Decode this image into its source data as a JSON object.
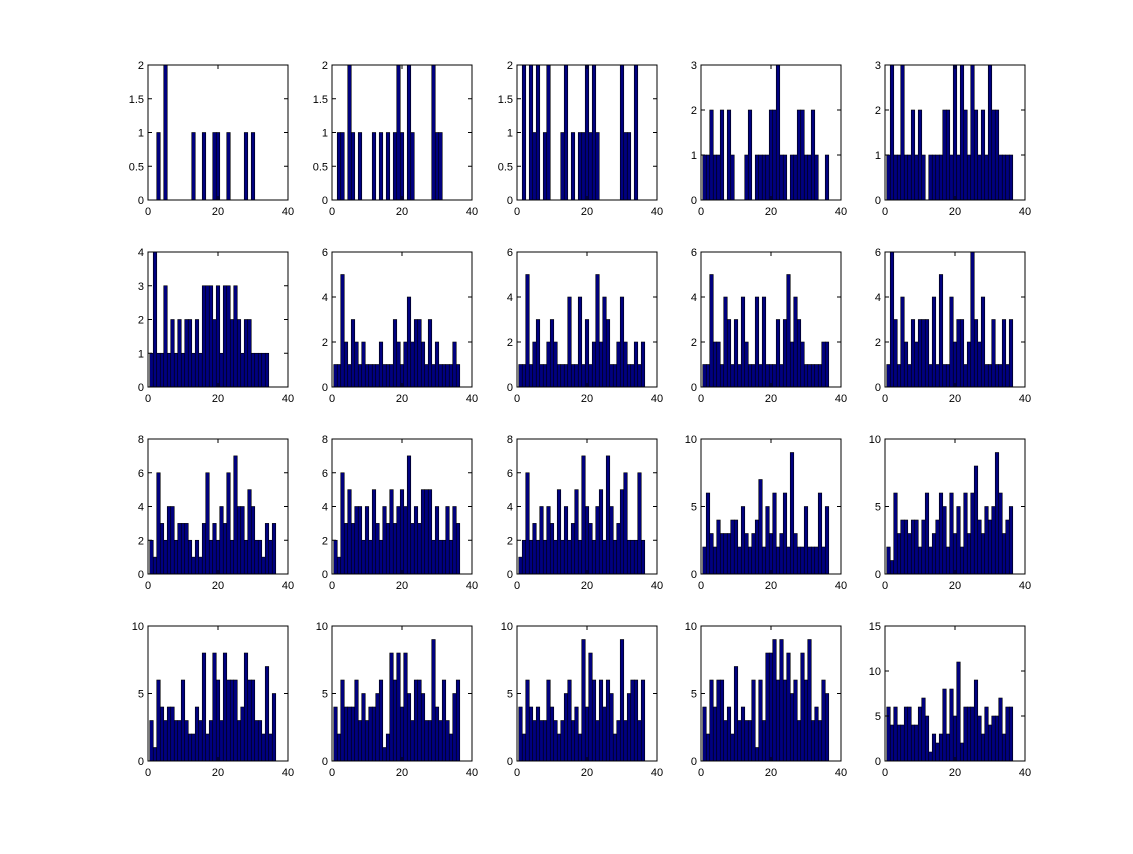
{
  "colors": {
    "bar_fill": "#000080",
    "bar_edge": "#000000",
    "axes": "#000000",
    "background": "#ffffff"
  },
  "chart_data": [
    {
      "type": "bar",
      "xlim": [
        0,
        40
      ],
      "ylim": [
        0,
        2
      ],
      "xticks": [
        "0",
        "20",
        "40"
      ],
      "yticks": [
        "0",
        "0.5",
        "1",
        "1.5",
        "2"
      ],
      "x_start": 1,
      "values": [
        0,
        0,
        1,
        0,
        2,
        0,
        0,
        0,
        0,
        0,
        0,
        0,
        1,
        0,
        0,
        1,
        0,
        0,
        1,
        1,
        0,
        0,
        1,
        0,
        0,
        0,
        0,
        1,
        0,
        1,
        0,
        0,
        0,
        0,
        0,
        0
      ]
    },
    {
      "type": "bar",
      "xlim": [
        0,
        40
      ],
      "ylim": [
        0,
        2
      ],
      "xticks": [
        "0",
        "20",
        "40"
      ],
      "yticks": [
        "0",
        "0.5",
        "1",
        "1.5",
        "2"
      ],
      "x_start": 1,
      "values": [
        0,
        1,
        1,
        0,
        2,
        1,
        0,
        1,
        0,
        0,
        0,
        1,
        0,
        1,
        0,
        1,
        0,
        1,
        2,
        1,
        0,
        2,
        1,
        0,
        0,
        0,
        0,
        0,
        2,
        1,
        1,
        0,
        0,
        0,
        0,
        0
      ]
    },
    {
      "type": "bar",
      "xlim": [
        0,
        40
      ],
      "ylim": [
        0,
        2
      ],
      "xticks": [
        "0",
        "20",
        "40"
      ],
      "yticks": [
        "0",
        "0.5",
        "1",
        "1.5",
        "2"
      ],
      "x_start": 1,
      "values": [
        0,
        2,
        0,
        2,
        1,
        2,
        0,
        1,
        2,
        0,
        0,
        0,
        1,
        2,
        0,
        1,
        0,
        1,
        1,
        2,
        1,
        2,
        1,
        0,
        0,
        0,
        0,
        0,
        0,
        2,
        1,
        1,
        0,
        2,
        0,
        0
      ]
    },
    {
      "type": "bar",
      "xlim": [
        0,
        40
      ],
      "ylim": [
        0,
        3
      ],
      "xticks": [
        "0",
        "20",
        "40"
      ],
      "yticks": [
        "0",
        "1",
        "2",
        "3"
      ],
      "x_start": 1,
      "values": [
        1,
        1,
        2,
        1,
        1,
        2,
        0,
        2,
        1,
        0,
        0,
        0,
        1,
        2,
        0,
        1,
        1,
        1,
        1,
        2,
        2,
        3,
        1,
        1,
        0,
        1,
        1,
        2,
        2,
        1,
        1,
        2,
        1,
        0,
        0,
        1
      ]
    },
    {
      "type": "bar",
      "xlim": [
        0,
        40
      ],
      "ylim": [
        0,
        3
      ],
      "xticks": [
        "0",
        "20",
        "40"
      ],
      "yticks": [
        "0",
        "1",
        "2",
        "3"
      ],
      "x_start": 1,
      "values": [
        1,
        3,
        1,
        1,
        3,
        1,
        1,
        2,
        1,
        2,
        1,
        0,
        1,
        1,
        1,
        1,
        2,
        2,
        1,
        3,
        1,
        3,
        2,
        1,
        3,
        2,
        1,
        2,
        1,
        3,
        2,
        2,
        1,
        1,
        1,
        1
      ]
    },
    {
      "type": "bar",
      "xlim": [
        0,
        40
      ],
      "ylim": [
        0,
        4
      ],
      "xticks": [
        "0",
        "20",
        "40"
      ],
      "yticks": [
        "0",
        "1",
        "2",
        "3",
        "4"
      ],
      "x_start": 1,
      "values": [
        1,
        4,
        1,
        1,
        3,
        1,
        2,
        1,
        2,
        1,
        2,
        2,
        1,
        2,
        1,
        3,
        3,
        3,
        2,
        3,
        1,
        3,
        3,
        2,
        3,
        2,
        1,
        2,
        2,
        1,
        1,
        1,
        1,
        1,
        0,
        0
      ]
    },
    {
      "type": "bar",
      "xlim": [
        0,
        40
      ],
      "ylim": [
        0,
        6
      ],
      "xticks": [
        "0",
        "20",
        "40"
      ],
      "yticks": [
        "0",
        "2",
        "4",
        "6"
      ],
      "x_start": 1,
      "values": [
        1,
        1,
        5,
        2,
        1,
        3,
        2,
        1,
        2,
        1,
        1,
        1,
        1,
        2,
        1,
        1,
        1,
        3,
        2,
        1,
        2,
        4,
        2,
        3,
        3,
        2,
        1,
        3,
        1,
        2,
        1,
        1,
        1,
        1,
        2,
        1
      ]
    },
    {
      "type": "bar",
      "xlim": [
        0,
        40
      ],
      "ylim": [
        0,
        6
      ],
      "xticks": [
        "0",
        "20",
        "40"
      ],
      "yticks": [
        "0",
        "2",
        "4",
        "6"
      ],
      "x_start": 1,
      "values": [
        1,
        1,
        5,
        1,
        2,
        3,
        1,
        1,
        2,
        3,
        2,
        1,
        1,
        1,
        4,
        1,
        1,
        4,
        1,
        3,
        1,
        2,
        5,
        2,
        4,
        3,
        1,
        1,
        2,
        4,
        2,
        1,
        1,
        2,
        1,
        2
      ]
    },
    {
      "type": "bar",
      "xlim": [
        0,
        40
      ],
      "ylim": [
        0,
        6
      ],
      "xticks": [
        "0",
        "20",
        "40"
      ],
      "yticks": [
        "0",
        "2",
        "4",
        "6"
      ],
      "x_start": 1,
      "values": [
        1,
        1,
        5,
        2,
        2,
        1,
        4,
        3,
        1,
        3,
        1,
        4,
        2,
        1,
        1,
        4,
        1,
        4,
        1,
        1,
        1,
        3,
        1,
        3,
        5,
        2,
        4,
        3,
        2,
        1,
        1,
        1,
        1,
        1,
        2,
        2
      ]
    },
    {
      "type": "bar",
      "xlim": [
        0,
        40
      ],
      "ylim": [
        0,
        6
      ],
      "xticks": [
        "0",
        "20",
        "40"
      ],
      "yticks": [
        "0",
        "2",
        "4",
        "6"
      ],
      "x_start": 1,
      "values": [
        1,
        6,
        3,
        1,
        4,
        2,
        1,
        3,
        2,
        3,
        3,
        3,
        1,
        4,
        1,
        5,
        1,
        1,
        4,
        2,
        3,
        3,
        1,
        2,
        6,
        3,
        2,
        4,
        1,
        1,
        3,
        1,
        1,
        3,
        1,
        3
      ]
    },
    {
      "type": "bar",
      "xlim": [
        0,
        40
      ],
      "ylim": [
        0,
        8
      ],
      "xticks": [
        "0",
        "20",
        "40"
      ],
      "yticks": [
        "0",
        "2",
        "4",
        "6",
        "8"
      ],
      "x_start": 1,
      "values": [
        2,
        1,
        6,
        3,
        2,
        4,
        4,
        2,
        3,
        3,
        3,
        2,
        1,
        2,
        1,
        3,
        6,
        2,
        3,
        2,
        4,
        3,
        6,
        2,
        7,
        4,
        4,
        2,
        5,
        4,
        2,
        2,
        1,
        3,
        2,
        3
      ]
    },
    {
      "type": "bar",
      "xlim": [
        0,
        40
      ],
      "ylim": [
        0,
        8
      ],
      "xticks": [
        "0",
        "20",
        "40"
      ],
      "yticks": [
        "0",
        "2",
        "4",
        "6",
        "8"
      ],
      "x_start": 1,
      "values": [
        2,
        1,
        6,
        3,
        5,
        3,
        4,
        4,
        2,
        4,
        2,
        5,
        3,
        2,
        4,
        3,
        5,
        3,
        4,
        5,
        4,
        7,
        3,
        4,
        3,
        5,
        5,
        5,
        2,
        4,
        2,
        2,
        4,
        2,
        4,
        3
      ]
    },
    {
      "type": "bar",
      "xlim": [
        0,
        40
      ],
      "ylim": [
        0,
        8
      ],
      "xticks": [
        "0",
        "20",
        "40"
      ],
      "yticks": [
        "0",
        "2",
        "4",
        "6",
        "8"
      ],
      "x_start": 1,
      "values": [
        1,
        2,
        6,
        2,
        3,
        2,
        4,
        2,
        4,
        3,
        2,
        5,
        2,
        4,
        2,
        3,
        5,
        2,
        7,
        4,
        3,
        2,
        4,
        5,
        2,
        7,
        4,
        2,
        3,
        5,
        6,
        2,
        2,
        2,
        6,
        2
      ]
    },
    {
      "type": "bar",
      "xlim": [
        0,
        40
      ],
      "ylim": [
        0,
        10
      ],
      "xticks": [
        "0",
        "20",
        "40"
      ],
      "yticks": [
        "0",
        "5",
        "10"
      ],
      "x_start": 1,
      "values": [
        2,
        6,
        3,
        2,
        4,
        3,
        3,
        3,
        4,
        4,
        2,
        5,
        3,
        2,
        3,
        4,
        7,
        2,
        5,
        3,
        6,
        2,
        3,
        6,
        2,
        9,
        3,
        2,
        2,
        5,
        2,
        2,
        2,
        6,
        2,
        5
      ]
    },
    {
      "type": "bar",
      "xlim": [
        0,
        40
      ],
      "ylim": [
        0,
        10
      ],
      "xticks": [
        "0",
        "20",
        "40"
      ],
      "yticks": [
        "0",
        "5",
        "10"
      ],
      "x_start": 1,
      "values": [
        2,
        1,
        6,
        3,
        4,
        4,
        3,
        4,
        4,
        2,
        4,
        6,
        2,
        3,
        4,
        6,
        5,
        2,
        6,
        3,
        5,
        2,
        6,
        3,
        6,
        8,
        4,
        3,
        5,
        4,
        5,
        9,
        6,
        3,
        4,
        5
      ]
    },
    {
      "type": "bar",
      "xlim": [
        0,
        40
      ],
      "ylim": [
        0,
        10
      ],
      "xticks": [
        "0",
        "20",
        "40"
      ],
      "yticks": [
        "0",
        "5",
        "10"
      ],
      "x_start": 1,
      "values": [
        3,
        1,
        6,
        4,
        3,
        4,
        4,
        3,
        3,
        6,
        3,
        2,
        2,
        4,
        3,
        8,
        2,
        3,
        8,
        6,
        3,
        8,
        6,
        6,
        6,
        3,
        4,
        8,
        6,
        6,
        3,
        3,
        2,
        7,
        2,
        5
      ]
    },
    {
      "type": "bar",
      "xlim": [
        0,
        40
      ],
      "ylim": [
        0,
        10
      ],
      "xticks": [
        "0",
        "20",
        "40"
      ],
      "yticks": [
        "0",
        "5",
        "10"
      ],
      "x_start": 1,
      "values": [
        4,
        2,
        6,
        4,
        4,
        4,
        6,
        3,
        5,
        3,
        4,
        4,
        5,
        6,
        1,
        2,
        8,
        6,
        8,
        4,
        8,
        5,
        3,
        6,
        6,
        5,
        3,
        3,
        9,
        4,
        3,
        6,
        3,
        2,
        5,
        6
      ]
    },
    {
      "type": "bar",
      "xlim": [
        0,
        40
      ],
      "ylim": [
        0,
        10
      ],
      "xticks": [
        "0",
        "20",
        "40"
      ],
      "yticks": [
        "0",
        "5",
        "10"
      ],
      "x_start": 1,
      "values": [
        4,
        2,
        6,
        4,
        3,
        4,
        3,
        3,
        6,
        4,
        3,
        2,
        3,
        5,
        6,
        3,
        4,
        2,
        9,
        4,
        8,
        6,
        3,
        6,
        4,
        6,
        5,
        2,
        3,
        9,
        3,
        5,
        6,
        6,
        3,
        6
      ]
    },
    {
      "type": "bar",
      "xlim": [
        0,
        40
      ],
      "ylim": [
        0,
        10
      ],
      "xticks": [
        "0",
        "20",
        "40"
      ],
      "yticks": [
        "0",
        "5",
        "10"
      ],
      "x_start": 1,
      "values": [
        4,
        2,
        6,
        4,
        6,
        6,
        3,
        4,
        2,
        7,
        3,
        4,
        3,
        3,
        6,
        1,
        6,
        3,
        8,
        8,
        9,
        6,
        9,
        6,
        8,
        5,
        6,
        3,
        8,
        6,
        9,
        3,
        4,
        3,
        6,
        5
      ]
    },
    {
      "type": "bar",
      "xlim": [
        0,
        40
      ],
      "ylim": [
        0,
        15
      ],
      "xticks": [
        "0",
        "20",
        "40"
      ],
      "yticks": [
        "0",
        "5",
        "10",
        "15"
      ],
      "x_start": 1,
      "values": [
        6,
        4,
        6,
        4,
        4,
        6,
        6,
        4,
        4,
        6,
        7,
        5,
        1,
        3,
        2,
        3,
        8,
        3,
        8,
        5,
        11,
        2,
        6,
        6,
        6,
        9,
        5,
        3,
        6,
        4,
        5,
        5,
        7,
        3,
        6,
        6
      ]
    }
  ]
}
